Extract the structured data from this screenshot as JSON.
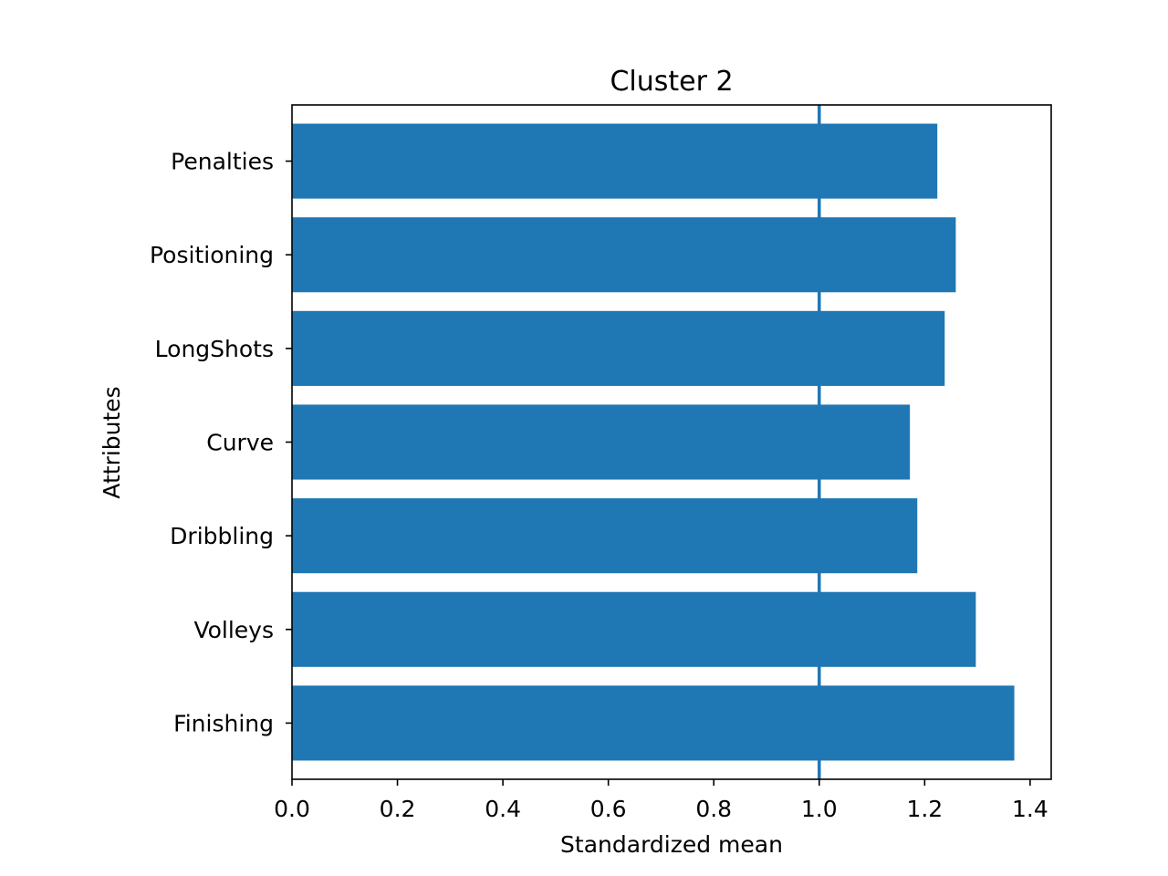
{
  "chart_data": {
    "type": "bar",
    "orientation": "horizontal",
    "title": "Cluster 2",
    "xlabel": "Standardized mean",
    "ylabel": "Attributes",
    "categories": [
      "Finishing",
      "Volleys",
      "Dribbling",
      "Curve",
      "LongShots",
      "Positioning",
      "Penalties"
    ],
    "values": [
      1.37,
      1.297,
      1.186,
      1.172,
      1.238,
      1.259,
      1.224
    ],
    "xlim": [
      0,
      1.44
    ],
    "xticks": [
      0.0,
      0.2,
      0.4,
      0.6,
      0.8,
      1.0,
      1.2,
      1.4
    ],
    "xtick_labels": [
      "0.0",
      "0.2",
      "0.4",
      "0.6",
      "0.8",
      "1.0",
      "1.2",
      "1.4"
    ],
    "reference_line": {
      "axis": "x",
      "value": 1.0
    },
    "grid": false,
    "legend": "none",
    "bar_color": "#1f77b4",
    "line_color": "#1f77b4"
  }
}
